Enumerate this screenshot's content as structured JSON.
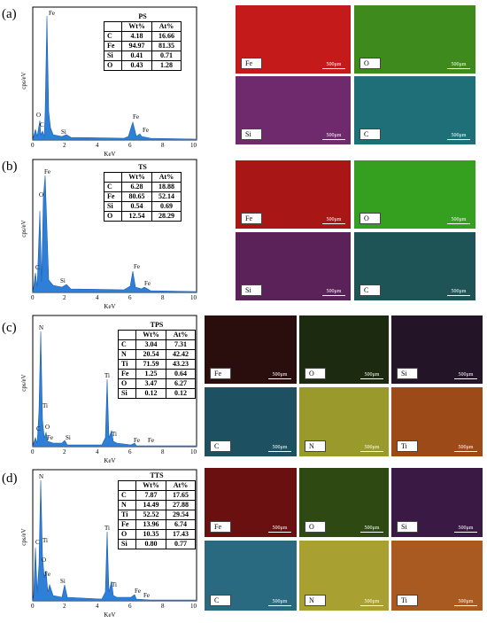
{
  "panels": [
    {
      "id": "a",
      "label": "(a)",
      "table": {
        "title": "PS",
        "headers": [
          "",
          "Wt%",
          "At%"
        ],
        "rows": [
          [
            "C",
            "4.18",
            "16.66"
          ],
          [
            "Fe",
            "94.97",
            "81.35"
          ],
          [
            "Si",
            "0.41",
            "0.71"
          ],
          [
            "O",
            "0.43",
            "1.28"
          ]
        ]
      },
      "peak_labels": [
        "Fe",
        "O",
        "C",
        "Si",
        "Fe",
        "Fe"
      ],
      "maps": [
        {
          "element": "Fe",
          "color": "#c41a1a"
        },
        {
          "element": "O",
          "color": "#3e8a1c"
        },
        {
          "element": "Si",
          "color": "#6e2a6c"
        },
        {
          "element": "C",
          "color": "#1f6f78"
        }
      ]
    },
    {
      "id": "b",
      "label": "(b)",
      "table": {
        "title": "TS",
        "headers": [
          "",
          "Wt%",
          "At%"
        ],
        "rows": [
          [
            "C",
            "6.28",
            "18.88"
          ],
          [
            "Fe",
            "80.65",
            "52.14"
          ],
          [
            "Si",
            "0.54",
            "0.69"
          ],
          [
            "O",
            "12.54",
            "28.29"
          ]
        ]
      },
      "peak_labels": [
        "Fe",
        "O",
        "C",
        "Si",
        "Fe",
        "Fe"
      ],
      "maps": [
        {
          "element": "Fe",
          "color": "#a81616"
        },
        {
          "element": "O",
          "color": "#35a01f"
        },
        {
          "element": "Si",
          "color": "#5a2258"
        },
        {
          "element": "C",
          "color": "#1e5456"
        }
      ]
    },
    {
      "id": "c",
      "label": "(c)",
      "table": {
        "title": "TPS",
        "headers": [
          "",
          "Wt%",
          "At%"
        ],
        "rows": [
          [
            "C",
            "3.04",
            "7.31"
          ],
          [
            "N",
            "20.54",
            "42.42"
          ],
          [
            "Ti",
            "71.59",
            "43.23"
          ],
          [
            "Fe",
            "1.25",
            "0.64"
          ],
          [
            "O",
            "3.47",
            "6.27"
          ],
          [
            "Si",
            "0.12",
            "0.12"
          ]
        ]
      },
      "peak_labels": [
        "N",
        "Ti",
        "C",
        "O",
        "Fe",
        "Si",
        "Ti",
        "Ti",
        "Fe",
        "Fe"
      ],
      "maps": [
        {
          "element": "Fe",
          "color": "#2a0e0e"
        },
        {
          "element": "O",
          "color": "#1c2a10"
        },
        {
          "element": "Si",
          "color": "#241428"
        },
        {
          "element": "C",
          "color": "#1d5060"
        },
        {
          "element": "N",
          "color": "#9a9a2c"
        },
        {
          "element": "Ti",
          "color": "#9c4a18"
        }
      ]
    },
    {
      "id": "d",
      "label": "(d)",
      "table": {
        "title": "TTS",
        "headers": [
          "",
          "Wt%",
          "At%"
        ],
        "rows": [
          [
            "C",
            "7.87",
            "17.65"
          ],
          [
            "N",
            "14.49",
            "27.88"
          ],
          [
            "Ti",
            "52.52",
            "29.54"
          ],
          [
            "Fe",
            "13.96",
            "6.74"
          ],
          [
            "O",
            "10.35",
            "17.43"
          ],
          [
            "Si",
            "0.80",
            "0.77"
          ]
        ]
      },
      "peak_labels": [
        "N",
        "C",
        "Ti",
        "O",
        "Fe",
        "Si",
        "Ti",
        "Ti",
        "Fe",
        "Fe"
      ],
      "maps": [
        {
          "element": "Fe",
          "color": "#6a1010"
        },
        {
          "element": "O",
          "color": "#2e4a12"
        },
        {
          "element": "Si",
          "color": "#3a1a44"
        },
        {
          "element": "C",
          "color": "#2a6a80"
        },
        {
          "element": "N",
          "color": "#a8a030"
        },
        {
          "element": "Ti",
          "color": "#a85a20"
        }
      ]
    }
  ],
  "axis": {
    "xlabel": "KeV",
    "ylabel": "cps/eV",
    "xticks": [
      "0",
      "2",
      "4",
      "6",
      "8",
      "10"
    ]
  },
  "scale_bar": "500μm",
  "colors": {
    "spectrum_fill": "#2f7fd6",
    "spectrum_line": "#1a5fb4"
  }
}
